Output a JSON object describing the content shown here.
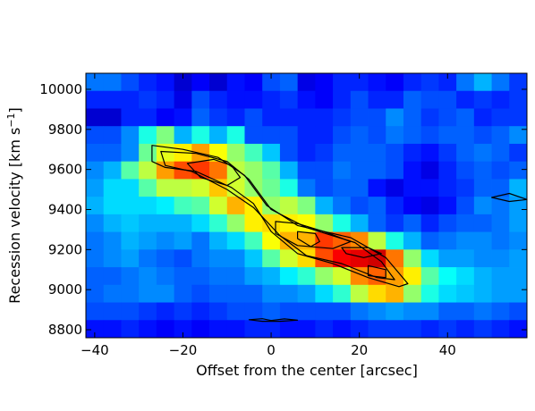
{
  "chart_data": {
    "type": "heatmap",
    "title": "",
    "xlabel": "Offset from the center [arcsec]",
    "ylabel_main": "Recession velocity [km s",
    "ylabel_exp": "−1",
    "ylabel_close": "]",
    "xlim": [
      -42,
      58
    ],
    "ylim": [
      8760,
      10080
    ],
    "x_ticks": [
      -40,
      -20,
      0,
      20,
      40
    ],
    "x_tick_labels": [
      "−40",
      "−20",
      "0",
      "20",
      "40"
    ],
    "y_ticks": [
      8800,
      9000,
      9200,
      9400,
      9600,
      9800,
      10000
    ],
    "y_tick_labels": [
      "8800",
      "9000",
      "9200",
      "9400",
      "9600",
      "9800",
      "10000"
    ],
    "grid": false,
    "colormap": "jet",
    "cell_width": 4,
    "cell_height": 88,
    "x_centers": [
      -40,
      -36,
      -32,
      -28,
      -24,
      -20,
      -16,
      -12,
      -8,
      -4,
      0,
      4,
      8,
      12,
      16,
      20,
      24,
      28,
      32,
      36,
      40,
      44,
      48,
      52,
      56
    ],
    "y_centers": [
      10036,
      9948,
      9860,
      9772,
      9684,
      9596,
      9508,
      9420,
      9332,
      9244,
      9156,
      9068,
      8980,
      8892,
      8804
    ],
    "z": [
      [
        0.24,
        0.24,
        0.2,
        0.16,
        0.14,
        0.08,
        0.12,
        0.08,
        0.14,
        0.12,
        0.2,
        0.22,
        0.1,
        0.12,
        0.16,
        0.16,
        0.14,
        0.12,
        0.16,
        0.18,
        0.16,
        0.24,
        0.3,
        0.24,
        0.18
      ],
      [
        0.16,
        0.16,
        0.16,
        0.18,
        0.16,
        0.1,
        0.2,
        0.16,
        0.14,
        0.14,
        0.16,
        0.18,
        0.14,
        0.12,
        0.16,
        0.2,
        0.16,
        0.16,
        0.22,
        0.2,
        0.2,
        0.16,
        0.18,
        0.16,
        0.18
      ],
      [
        0.08,
        0.08,
        0.16,
        0.16,
        0.12,
        0.14,
        0.22,
        0.18,
        0.16,
        0.2,
        0.16,
        0.16,
        0.16,
        0.16,
        0.18,
        0.2,
        0.2,
        0.26,
        0.22,
        0.18,
        0.2,
        0.22,
        0.16,
        0.18,
        0.18
      ],
      [
        0.2,
        0.2,
        0.26,
        0.4,
        0.5,
        0.3,
        0.4,
        0.3,
        0.4,
        0.2,
        0.2,
        0.2,
        0.16,
        0.16,
        0.2,
        0.22,
        0.2,
        0.24,
        0.22,
        0.2,
        0.22,
        0.22,
        0.2,
        0.22,
        0.26
      ],
      [
        0.22,
        0.22,
        0.26,
        0.48,
        0.6,
        0.64,
        0.72,
        0.62,
        0.52,
        0.44,
        0.32,
        0.2,
        0.16,
        0.18,
        0.22,
        0.22,
        0.22,
        0.2,
        0.16,
        0.14,
        0.18,
        0.22,
        0.24,
        0.22,
        0.18
      ],
      [
        0.26,
        0.3,
        0.46,
        0.56,
        0.72,
        0.8,
        0.82,
        0.76,
        0.56,
        0.52,
        0.46,
        0.3,
        0.2,
        0.2,
        0.24,
        0.22,
        0.22,
        0.2,
        0.14,
        0.1,
        0.16,
        0.2,
        0.22,
        0.2,
        0.22
      ],
      [
        0.28,
        0.34,
        0.34,
        0.46,
        0.56,
        0.56,
        0.58,
        0.68,
        0.58,
        0.52,
        0.48,
        0.4,
        0.24,
        0.2,
        0.22,
        0.22,
        0.14,
        0.1,
        0.14,
        0.14,
        0.16,
        0.18,
        0.22,
        0.22,
        0.3
      ],
      [
        0.3,
        0.34,
        0.34,
        0.34,
        0.36,
        0.44,
        0.46,
        0.58,
        0.7,
        0.64,
        0.52,
        0.56,
        0.5,
        0.3,
        0.24,
        0.2,
        0.22,
        0.16,
        0.12,
        0.1,
        0.14,
        0.2,
        0.26,
        0.24,
        0.28
      ],
      [
        0.26,
        0.3,
        0.32,
        0.3,
        0.3,
        0.3,
        0.34,
        0.42,
        0.52,
        0.64,
        0.66,
        0.64,
        0.62,
        0.52,
        0.4,
        0.3,
        0.22,
        0.18,
        0.22,
        0.16,
        0.2,
        0.22,
        0.22,
        0.24,
        0.28
      ],
      [
        0.24,
        0.26,
        0.3,
        0.28,
        0.26,
        0.28,
        0.24,
        0.3,
        0.34,
        0.44,
        0.62,
        0.7,
        0.7,
        0.82,
        0.78,
        0.74,
        0.56,
        0.4,
        0.3,
        0.22,
        0.24,
        0.26,
        0.26,
        0.24,
        0.26
      ],
      [
        0.24,
        0.26,
        0.28,
        0.24,
        0.22,
        0.2,
        0.24,
        0.26,
        0.26,
        0.32,
        0.46,
        0.58,
        0.66,
        0.8,
        0.88,
        0.9,
        0.92,
        0.76,
        0.52,
        0.34,
        0.28,
        0.28,
        0.26,
        0.26,
        0.28
      ],
      [
        0.22,
        0.22,
        0.24,
        0.26,
        0.24,
        0.22,
        0.22,
        0.24,
        0.24,
        0.28,
        0.3,
        0.36,
        0.42,
        0.52,
        0.58,
        0.74,
        0.78,
        0.72,
        0.64,
        0.46,
        0.38,
        0.34,
        0.3,
        0.28,
        0.28
      ],
      [
        0.22,
        0.24,
        0.24,
        0.26,
        0.26,
        0.22,
        0.2,
        0.22,
        0.22,
        0.22,
        0.26,
        0.26,
        0.28,
        0.34,
        0.42,
        0.56,
        0.66,
        0.7,
        0.52,
        0.4,
        0.34,
        0.32,
        0.3,
        0.28,
        0.28
      ],
      [
        0.2,
        0.2,
        0.2,
        0.18,
        0.16,
        0.18,
        0.16,
        0.18,
        0.2,
        0.2,
        0.22,
        0.2,
        0.2,
        0.2,
        0.2,
        0.24,
        0.26,
        0.28,
        0.26,
        0.26,
        0.22,
        0.22,
        0.24,
        0.22,
        0.2
      ],
      [
        0.14,
        0.14,
        0.16,
        0.14,
        0.12,
        0.14,
        0.12,
        0.14,
        0.14,
        0.16,
        0.16,
        0.14,
        0.14,
        0.16,
        0.14,
        0.16,
        0.18,
        0.18,
        0.18,
        0.16,
        0.18,
        0.16,
        0.18,
        0.16,
        0.14
      ]
    ],
    "contours": [
      [
        [
          -27,
          9720
        ],
        [
          -20,
          9700
        ],
        [
          -12,
          9660
        ],
        [
          -6,
          9570
        ],
        [
          -1,
          9420
        ],
        [
          6,
          9320
        ],
        [
          18,
          9260
        ],
        [
          26,
          9160
        ],
        [
          31,
          9030
        ],
        [
          29,
          9015
        ],
        [
          22,
          9060
        ],
        [
          14,
          9130
        ],
        [
          6,
          9180
        ],
        [
          0,
          9290
        ],
        [
          -4,
          9430
        ],
        [
          -9,
          9510
        ],
        [
          -17,
          9590
        ],
        [
          -24,
          9610
        ],
        [
          -27,
          9640
        ],
        [
          -27,
          9720
        ]
      ],
      [
        [
          -25,
          9690
        ],
        [
          -17,
          9680
        ],
        [
          -10,
          9640
        ],
        [
          -5,
          9550
        ],
        [
          0,
          9400
        ],
        [
          8,
          9310
        ],
        [
          19,
          9235
        ],
        [
          25,
          9140
        ],
        [
          28,
          9050
        ],
        [
          24,
          9060
        ],
        [
          16,
          9130
        ],
        [
          8,
          9170
        ],
        [
          2,
          9270
        ],
        [
          -4,
          9410
        ],
        [
          -10,
          9500
        ],
        [
          -18,
          9590
        ],
        [
          -24,
          9620
        ],
        [
          -25,
          9690
        ]
      ],
      [
        [
          -19,
          9630
        ],
        [
          -13,
          9650
        ],
        [
          -9,
          9620
        ],
        [
          -7,
          9560
        ],
        [
          -10,
          9520
        ],
        [
          -16,
          9560
        ],
        [
          -19,
          9630
        ]
      ],
      [
        [
          1,
          9340
        ],
        [
          6,
          9330
        ],
        [
          12,
          9290
        ],
        [
          18,
          9240
        ],
        [
          14,
          9205
        ],
        [
          6,
          9220
        ],
        [
          1,
          9280
        ],
        [
          1,
          9340
        ]
      ],
      [
        [
          6,
          9290
        ],
        [
          10,
          9280
        ],
        [
          11,
          9240
        ],
        [
          9,
          9215
        ],
        [
          6,
          9255
        ],
        [
          6,
          9290
        ]
      ],
      [
        [
          16,
          9210
        ],
        [
          22,
          9210
        ],
        [
          25,
          9180
        ],
        [
          21,
          9160
        ],
        [
          17,
          9180
        ],
        [
          16,
          9210
        ]
      ],
      [
        [
          22,
          9120
        ],
        [
          26,
          9100
        ],
        [
          26,
          9060
        ],
        [
          22,
          9070
        ],
        [
          22,
          9120
        ]
      ],
      [
        [
          50,
          9460
        ],
        [
          54,
          9480
        ],
        [
          58,
          9450
        ],
        [
          54,
          9440
        ],
        [
          50,
          9460
        ]
      ],
      [
        [
          -5,
          8850
        ],
        [
          -2,
          8855
        ],
        [
          0,
          8846
        ],
        [
          3,
          8854
        ],
        [
          6,
          8848
        ],
        [
          2,
          8842
        ],
        [
          -2,
          8842
        ],
        [
          -5,
          8850
        ]
      ]
    ]
  }
}
